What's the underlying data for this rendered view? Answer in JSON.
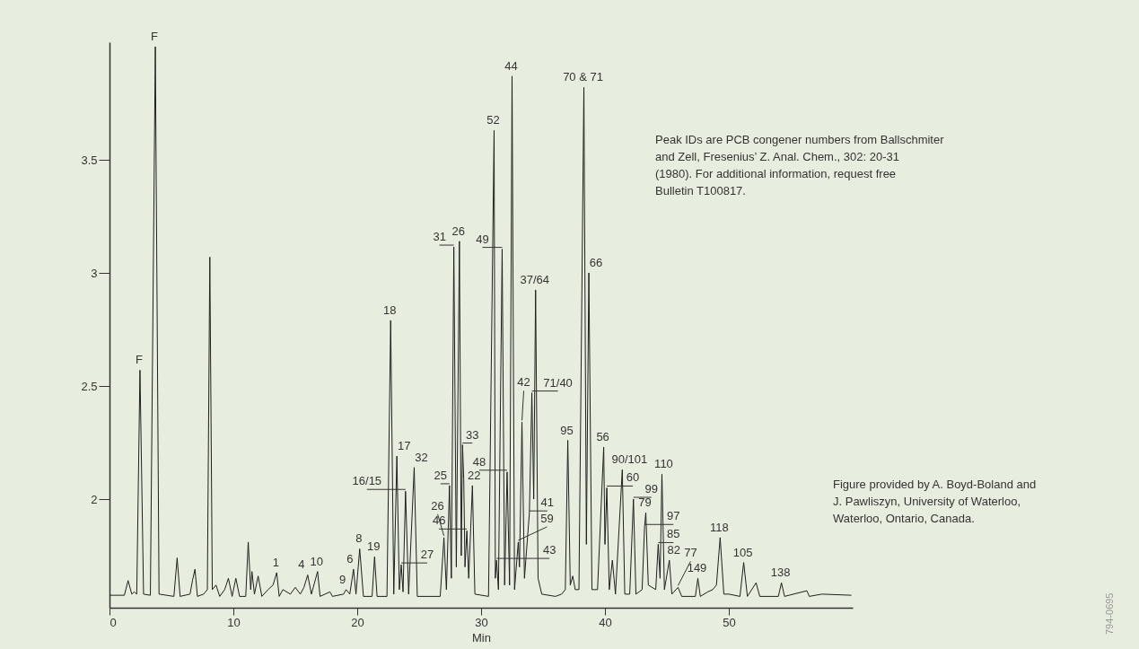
{
  "chart_data": {
    "type": "line",
    "xlabel": "Min",
    "xlim": [
      0,
      60
    ],
    "xticks": [
      0,
      10,
      20,
      30,
      40,
      50
    ],
    "ylim": [
      1.52,
      4.02
    ],
    "yticks": [
      2,
      2.5,
      3,
      3.5
    ],
    "grid": false,
    "marker": "none",
    "line_style": "solid",
    "series": [
      {
        "color": "#1e1e1e",
        "x": [
          0,
          1.2,
          1.5,
          1.8,
          2.0,
          2.2,
          2.46,
          2.75,
          3.3,
          3.7,
          4.0,
          5.2,
          5.46,
          5.7,
          6.5,
          6.7,
          6.9,
          7.1,
          7.6,
          7.9,
          8.1,
          8.3,
          8.6,
          8.9,
          9.3,
          9.6,
          9.9,
          10.2,
          10.5,
          11.0,
          11.2,
          11.4,
          11.5,
          11.7,
          12.0,
          12.3,
          12.8,
          13.2,
          13.5,
          13.7,
          14.0,
          14.6,
          15.0,
          15.4,
          15.7,
          16.0,
          16.3,
          16.8,
          17.0,
          17.8,
          18.0,
          18.9,
          19.1,
          19.4,
          19.7,
          19.9,
          20.2,
          20.5,
          21.2,
          21.4,
          21.6,
          22.4,
          22.7,
          22.95,
          23.2,
          23.4,
          23.55,
          23.7,
          23.9,
          24.15,
          24.6,
          24.85,
          26.7,
          27.0,
          27.2,
          27.45,
          27.6,
          27.8,
          28.0,
          28.25,
          28.4,
          28.5,
          28.6,
          28.7,
          28.85,
          29.0,
          29.3,
          29.5,
          30.6,
          31.05,
          31.15,
          31.25,
          31.4,
          31.7,
          31.9,
          32.1,
          32.3,
          32.5,
          32.7,
          33.0,
          33.1,
          33.3,
          33.5,
          33.9,
          34.1,
          34.25,
          34.4,
          34.6,
          34.9,
          36.0,
          36.5,
          36.8,
          37.0,
          37.2,
          37.4,
          37.6,
          37.9,
          38.3,
          38.5,
          38.7,
          38.95,
          39.4,
          39.9,
          40.0,
          40.15,
          40.35,
          40.6,
          40.85,
          41.4,
          41.6,
          42.0,
          42.3,
          42.5,
          43.0,
          43.2,
          43.3,
          43.5,
          44.1,
          44.3,
          44.45,
          44.6,
          44.8,
          45.2,
          45.4,
          45.9,
          46.2,
          47.3,
          47.5,
          47.7,
          48.3,
          48.7,
          49.0,
          49.3,
          49.6,
          50.0,
          50.9,
          51.2,
          51.5,
          52.2,
          52.5,
          54.0,
          54.25,
          54.5,
          56.3,
          56.5,
          57.5,
          59.9
        ],
        "values": [
          1.575,
          1.575,
          1.64,
          1.58,
          1.59,
          1.58,
          2.57,
          1.58,
          1.575,
          4.0,
          1.58,
          1.57,
          1.74,
          1.57,
          1.58,
          1.64,
          1.69,
          1.57,
          1.58,
          1.6,
          3.07,
          1.6,
          1.62,
          1.57,
          1.6,
          1.65,
          1.57,
          1.65,
          1.57,
          1.57,
          1.81,
          1.6,
          1.68,
          1.58,
          1.66,
          1.57,
          1.6,
          1.62,
          1.675,
          1.57,
          1.6,
          1.58,
          1.61,
          1.58,
          1.61,
          1.665,
          1.58,
          1.68,
          1.57,
          1.59,
          1.57,
          1.58,
          1.6,
          1.58,
          1.69,
          1.58,
          1.78,
          1.57,
          1.57,
          1.745,
          1.57,
          1.57,
          2.79,
          1.58,
          2.19,
          1.6,
          1.71,
          1.59,
          2.035,
          1.58,
          2.14,
          1.57,
          1.57,
          1.83,
          1.6,
          2.06,
          1.65,
          3.115,
          1.7,
          3.14,
          1.75,
          2.24,
          2.09,
          1.7,
          1.86,
          1.65,
          2.06,
          1.58,
          1.57,
          3.63,
          1.65,
          1.73,
          1.6,
          3.105,
          1.62,
          2.12,
          1.62,
          3.87,
          1.6,
          1.81,
          1.7,
          2.34,
          1.65,
          1.94,
          2.47,
          2.0,
          2.925,
          1.65,
          1.58,
          1.57,
          1.58,
          1.6,
          2.26,
          1.62,
          1.66,
          1.6,
          1.6,
          3.82,
          1.8,
          3.0,
          1.6,
          1.6,
          2.23,
          1.8,
          2.05,
          1.6,
          1.73,
          1.58,
          2.13,
          1.58,
          1.58,
          2.0,
          1.58,
          1.6,
          1.88,
          1.94,
          1.62,
          1.6,
          1.8,
          1.65,
          2.11,
          1.6,
          1.73,
          1.58,
          1.61,
          1.57,
          1.57,
          1.65,
          1.57,
          1.59,
          1.6,
          1.62,
          1.83,
          1.58,
          1.58,
          1.57,
          1.72,
          1.57,
          1.63,
          1.57,
          1.57,
          1.63,
          1.57,
          1.595,
          1.57,
          1.58,
          1.575
        ]
      }
    ],
    "annotations": [
      {
        "text": "F",
        "x": 2.46,
        "y": 2.57
      },
      {
        "text": "F",
        "x": 3.7,
        "y": 4.0
      },
      {
        "text": "1",
        "x": 13.5,
        "y": 1.675
      },
      {
        "text": "4",
        "x": 16.0,
        "y": 1.665
      },
      {
        "text": "10",
        "x": 16.8,
        "y": 1.68
      },
      {
        "text": "9",
        "x": 19.1,
        "y": 1.6
      },
      {
        "text": "6",
        "x": 19.7,
        "y": 1.69
      },
      {
        "text": "8",
        "x": 20.2,
        "y": 1.78
      },
      {
        "text": "19",
        "x": 21.4,
        "y": 1.745
      },
      {
        "text": "18",
        "x": 22.7,
        "y": 2.79
      },
      {
        "text": "17",
        "x": 23.2,
        "y": 2.19
      },
      {
        "text": "27",
        "x": 23.55,
        "y": 1.71
      },
      {
        "text": "16/15",
        "x": 23.9,
        "y": 2.035
      },
      {
        "text": "32",
        "x": 24.6,
        "y": 2.14
      },
      {
        "text": "26",
        "x": 27.0,
        "y": 1.83
      },
      {
        "text": "25",
        "x": 27.45,
        "y": 2.06
      },
      {
        "text": "31",
        "x": 27.8,
        "y": 3.115
      },
      {
        "text": "26",
        "x": 28.25,
        "y": 3.14
      },
      {
        "text": "33",
        "x": 28.5,
        "y": 2.24
      },
      {
        "text": "46",
        "x": 28.85,
        "y": 1.86
      },
      {
        "text": "22",
        "x": 29.3,
        "y": 2.06
      },
      {
        "text": "52",
        "x": 31.05,
        "y": 3.63
      },
      {
        "text": "43",
        "x": 31.25,
        "y": 1.73
      },
      {
        "text": "49",
        "x": 31.7,
        "y": 3.105
      },
      {
        "text": "48",
        "x": 32.1,
        "y": 2.12
      },
      {
        "text": "44",
        "x": 32.5,
        "y": 3.87
      },
      {
        "text": "59",
        "x": 33.0,
        "y": 1.81
      },
      {
        "text": "42",
        "x": 33.3,
        "y": 2.34
      },
      {
        "text": "41",
        "x": 33.9,
        "y": 1.94
      },
      {
        "text": "71/40",
        "x": 34.1,
        "y": 2.47
      },
      {
        "text": "37/64",
        "x": 34.4,
        "y": 2.925
      },
      {
        "text": "95",
        "x": 37.0,
        "y": 2.26
      },
      {
        "text": "70 & 71",
        "x": 38.3,
        "y": 3.82
      },
      {
        "text": "66",
        "x": 38.7,
        "y": 3.0
      },
      {
        "text": "56",
        "x": 39.9,
        "y": 2.23
      },
      {
        "text": "60",
        "x": 40.15,
        "y": 2.05
      },
      {
        "text": "90/101",
        "x": 41.4,
        "y": 2.13
      },
      {
        "text": "99",
        "x": 42.3,
        "y": 2.0
      },
      {
        "text": "97",
        "x": 43.2,
        "y": 1.88
      },
      {
        "text": "79",
        "x": 43.3,
        "y": 1.94
      },
      {
        "text": "85",
        "x": 44.3,
        "y": 1.8
      },
      {
        "text": "110",
        "x": 44.6,
        "y": 2.11
      },
      {
        "text": "82",
        "x": 45.2,
        "y": 1.73
      },
      {
        "text": "77",
        "x": 45.9,
        "y": 1.61
      },
      {
        "text": "149",
        "x": 47.5,
        "y": 1.65
      },
      {
        "text": "118",
        "x": 49.3,
        "y": 1.83
      },
      {
        "text": "105",
        "x": 51.2,
        "y": 1.72
      },
      {
        "text": "138",
        "x": 54.25,
        "y": 1.63
      },
      "Peak IDs are PCB congener numbers from Ballschmiter and Zell,  Fresenius’ Z. Anal. Chem., 302: 20-31 (1980). For additional information, request free Bulletin T100817.",
      "Figure provided by A. Boyd-Boland and J. Pawliszyn, University of Waterloo, Waterloo, Ontario, Canada.",
      "794-0695"
    ]
  }
}
